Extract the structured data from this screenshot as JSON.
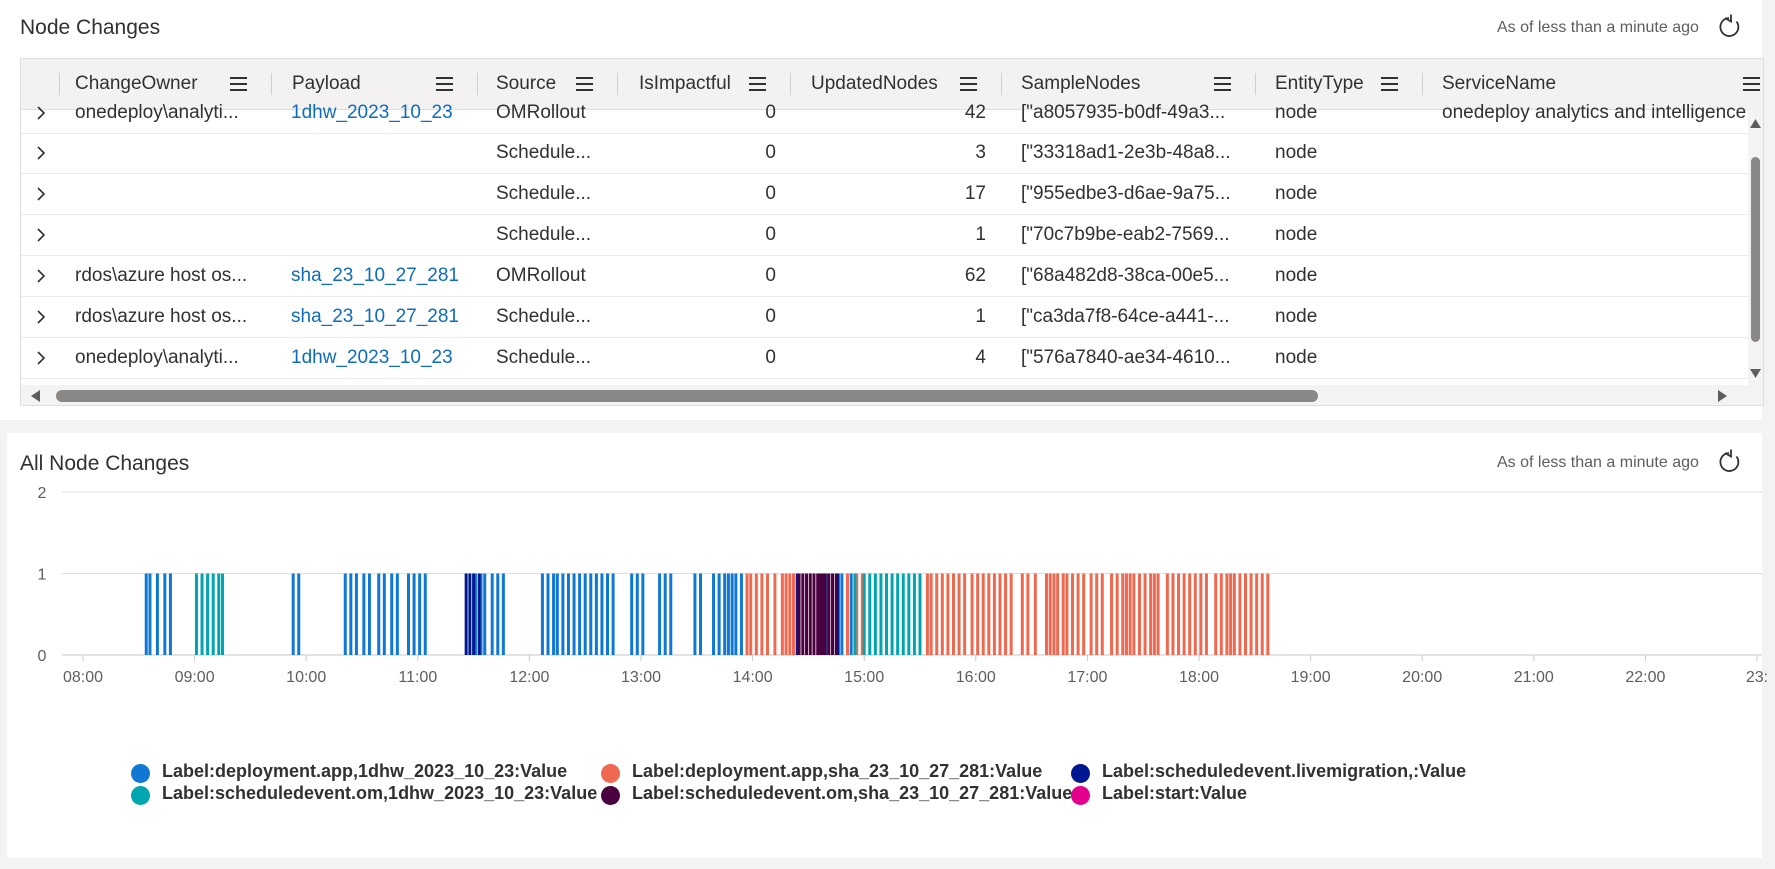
{
  "top_panel": {
    "title": "Node Changes",
    "as_of": "As of less than a minute ago",
    "columns": [
      "ChangeOwner",
      "Payload",
      "Source",
      "IsImpactful",
      "UpdatedNodes",
      "SampleNodes",
      "EntityType",
      "ServiceName"
    ],
    "rows": [
      {
        "owner": "onedeploy\\analyti...",
        "payload": "1dhw_2023_10_23",
        "source": "OMRollout",
        "impactful": "0",
        "updated": "42",
        "sample": "[\"a8057935-b0df-49a3...",
        "entity": "node",
        "service": "onedeploy analytics and intelligence"
      },
      {
        "owner": "",
        "payload": "",
        "source": "Schedule...",
        "impactful": "0",
        "updated": "3",
        "sample": "[\"33318ad1-2e3b-48a8...",
        "entity": "node",
        "service": ""
      },
      {
        "owner": "",
        "payload": "",
        "source": "Schedule...",
        "impactful": "0",
        "updated": "17",
        "sample": "[\"955edbe3-d6ae-9a75...",
        "entity": "node",
        "service": ""
      },
      {
        "owner": "",
        "payload": "",
        "source": "Schedule...",
        "impactful": "0",
        "updated": "1",
        "sample": "[\"70c7b9be-eab2-7569...",
        "entity": "node",
        "service": ""
      },
      {
        "owner": "rdos\\azure host os...",
        "payload": "sha_23_10_27_281",
        "source": "OMRollout",
        "impactful": "0",
        "updated": "62",
        "sample": "[\"68a482d8-38ca-00e5...",
        "entity": "node",
        "service": ""
      },
      {
        "owner": "rdos\\azure host os...",
        "payload": "sha_23_10_27_281",
        "source": "Schedule...",
        "impactful": "0",
        "updated": "1",
        "sample": "[\"ca3da7f8-64ce-a441-...",
        "entity": "node",
        "service": ""
      },
      {
        "owner": "onedeploy\\analyti...",
        "payload": "1dhw_2023_10_23",
        "source": "Schedule...",
        "impactful": "0",
        "updated": "4",
        "sample": "[\"576a7840-ae34-4610...",
        "entity": "node",
        "service": ""
      }
    ]
  },
  "bottom_panel": {
    "title": "All Node Changes",
    "as_of": "As of less than a minute ago"
  },
  "icons": {
    "refresh": "refresh-icon",
    "expand": "chevron-right-icon",
    "column_menu": "hamburger-menu-icon"
  },
  "chart_data": {
    "type": "bar",
    "x_tick_labels": [
      "08:00",
      "09:00",
      "10:00",
      "11:00",
      "12:00",
      "13:00",
      "14:00",
      "15:00",
      "16:00",
      "17:00",
      "18:00",
      "19:00",
      "20:00",
      "21:00",
      "22:00",
      "23:"
    ],
    "ylim": [
      0,
      2
    ],
    "y_tick_labels": [
      "0",
      "1",
      "2"
    ],
    "grid": true,
    "legend_position": "bottom",
    "series": [
      {
        "name": "Label:deployment.app,1dhw_2023_10_23:Value",
        "color": "#0f78d4",
        "x": [
          "08:34",
          "08:36",
          "08:40",
          "08:44",
          "08:47",
          "09:53",
          "09:56",
          "10:21",
          "10:24",
          "10:27",
          "10:31",
          "10:34",
          "10:39",
          "10:42",
          "10:46",
          "10:49",
          "10:55",
          "10:58",
          "11:01",
          "11:04",
          "11:31",
          "11:34",
          "11:36",
          "11:40",
          "11:43",
          "11:46",
          "12:07",
          "12:10",
          "12:13",
          "12:15",
          "12:18",
          "12:21",
          "12:24",
          "12:27",
          "12:30",
          "12:33",
          "12:36",
          "12:39",
          "12:42",
          "12:45",
          "12:55",
          "12:58",
          "13:01",
          "13:10",
          "13:13",
          "13:16",
          "13:29",
          "13:32",
          "13:39",
          "13:42",
          "13:45",
          "13:47",
          "13:49",
          "13:51",
          "13:54",
          "14:40",
          "14:43",
          "14:48",
          "14:53"
        ],
        "values": [
          1,
          1,
          1,
          1,
          1,
          1,
          1,
          1,
          1,
          1,
          1,
          1,
          1,
          1,
          1,
          1,
          1,
          1,
          1,
          1,
          1,
          1,
          1,
          1,
          1,
          1,
          1,
          1,
          1,
          1,
          1,
          1,
          1,
          1,
          1,
          1,
          1,
          1,
          1,
          1,
          1,
          1,
          1,
          1,
          1,
          1,
          1,
          1,
          1,
          1,
          1,
          1,
          1,
          1,
          1,
          1,
          1,
          1,
          1
        ]
      },
      {
        "name": "Label:deployment.app,sha_23_10_27_281:Value",
        "color": "#ef6950",
        "x": [
          "13:57",
          "13:59",
          "14:02",
          "14:05",
          "14:08",
          "14:12",
          "14:16",
          "14:18",
          "14:20",
          "14:22",
          "14:51",
          "14:56",
          "14:59",
          "15:34",
          "15:36",
          "15:39",
          "15:42",
          "15:45",
          "15:48",
          "15:51",
          "15:54",
          "15:58",
          "16:01",
          "16:04",
          "16:07",
          "16:10",
          "16:13",
          "16:16",
          "16:19",
          "16:25",
          "16:28",
          "16:32",
          "16:38",
          "16:40",
          "16:42",
          "16:44",
          "16:47",
          "16:49",
          "16:52",
          "16:55",
          "16:58",
          "17:02",
          "17:05",
          "17:08",
          "17:13",
          "17:16",
          "17:19",
          "17:21",
          "17:23",
          "17:25",
          "17:28",
          "17:31",
          "17:34",
          "17:36",
          "17:38",
          "17:43",
          "17:46",
          "17:49",
          "17:52",
          "17:55",
          "17:58",
          "18:01",
          "18:04",
          "18:09",
          "18:12",
          "18:15",
          "18:17",
          "18:19",
          "18:22",
          "18:25",
          "18:28",
          "18:31",
          "18:34",
          "18:37"
        ],
        "values": [
          1,
          1,
          1,
          1,
          1,
          1,
          1,
          1,
          1,
          1,
          1,
          1,
          1,
          1,
          1,
          1,
          1,
          1,
          1,
          1,
          1,
          1,
          1,
          1,
          1,
          1,
          1,
          1,
          1,
          1,
          1,
          1,
          1,
          1,
          1,
          1,
          1,
          1,
          1,
          1,
          1,
          1,
          1,
          1,
          1,
          1,
          1,
          1,
          1,
          1,
          1,
          1,
          1,
          1,
          1,
          1,
          1,
          1,
          1,
          1,
          1,
          1,
          1,
          1,
          1,
          1,
          1,
          1,
          1,
          1,
          1,
          1,
          1,
          1
        ]
      },
      {
        "name": "Label:scheduledevent.livemigration,:Value",
        "color": "#00188f",
        "x": [
          "11:26",
          "11:28",
          "11:30",
          "11:33",
          "14:24",
          "14:36",
          "14:38",
          "14:46"
        ],
        "values": [
          1,
          1,
          1,
          1,
          1,
          1,
          1,
          1
        ]
      },
      {
        "name": "Label:scheduledevent.om,1dhw_2023_10_23:Value",
        "color": "#00a5af",
        "x": [
          "09:01",
          "09:04",
          "09:07",
          "09:10",
          "09:13",
          "09:15",
          "14:55",
          "15:00",
          "15:03",
          "15:06",
          "15:09",
          "15:12",
          "15:15",
          "15:18",
          "15:21",
          "15:24",
          "15:27",
          "15:30"
        ],
        "values": [
          1,
          1,
          1,
          1,
          1,
          1,
          1,
          1,
          1,
          1,
          1,
          1,
          1,
          1,
          1,
          1,
          1,
          1
        ]
      },
      {
        "name": "Label:scheduledevent.om,sha_23_10_27_281:Value",
        "color": "#4b003f",
        "x": [
          "14:25",
          "14:27",
          "14:29",
          "14:31",
          "14:33",
          "14:35",
          "14:37",
          "14:39",
          "14:41",
          "14:43",
          "14:45"
        ],
        "values": [
          1,
          1,
          1,
          1,
          1,
          1,
          1,
          1,
          1,
          1,
          1
        ]
      },
      {
        "name": "Label:start:Value",
        "color": "#e3008c",
        "x": [],
        "values": []
      }
    ]
  }
}
